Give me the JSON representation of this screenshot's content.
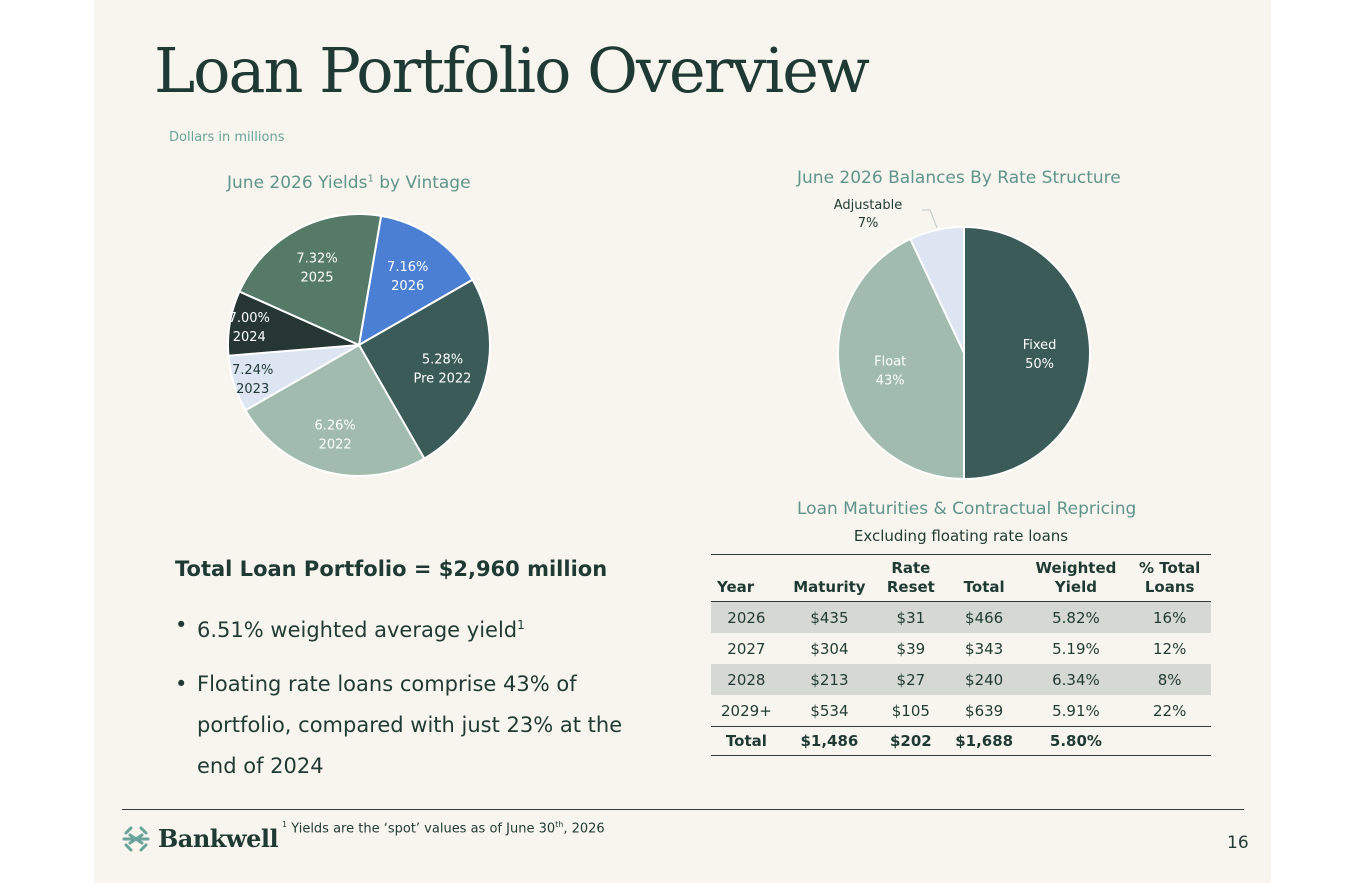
{
  "title": "Loan Portfolio  Overview",
  "subnote": "Dollars in millions",
  "chart1": {
    "title_pre": "June 2026 Yields",
    "title_sup": "1",
    "title_post": " by Vintage"
  },
  "chart2": {
    "title": "June 2026 Balances By Rate Structure"
  },
  "chart_data": [
    {
      "type": "pie",
      "title": "June 2026 Yields1 by Vintage",
      "slices": [
        {
          "label": "2026",
          "yield": "7.16%",
          "share": 0.14,
          "color": "#4a7fd4"
        },
        {
          "label": "Pre 2022",
          "yield": "5.28%",
          "share": 0.25,
          "color": "#3b5b58"
        },
        {
          "label": "2022",
          "yield": "6.26%",
          "share": 0.25,
          "color": "#a1bcaf"
        },
        {
          "label": "2023",
          "yield": "7.24%",
          "share": 0.07,
          "color": "#dde5f2"
        },
        {
          "label": "2024",
          "yield": "7.00%",
          "share": 0.08,
          "color": "#253633"
        },
        {
          "label": "2025",
          "yield": "7.32%",
          "share": 0.21,
          "color": "#557a67"
        }
      ]
    },
    {
      "type": "pie",
      "title": "June 2026 Balances By Rate Structure",
      "slices": [
        {
          "label": "Fixed",
          "value": 50,
          "display": "50%",
          "color": "#3b5b58"
        },
        {
          "label": "Float",
          "value": 43,
          "display": "43%",
          "color": "#a1bcaf"
        },
        {
          "label": "Adjustable",
          "value": 7,
          "display": "7%",
          "color": "#dde5f2"
        }
      ]
    },
    {
      "type": "table",
      "title": "Loan Maturities & Contractual Repricing",
      "subtitle": "Excluding floating rate loans",
      "columns": [
        "Year",
        "Maturity",
        "Rate Reset",
        "Total",
        "Weighted Yield",
        "% Total Loans"
      ],
      "rows": [
        [
          "2026",
          "$435",
          "$31",
          "$466",
          "5.82%",
          "16%"
        ],
        [
          "2027",
          "$304",
          "$39",
          "$343",
          "5.19%",
          "12%"
        ],
        [
          "2028",
          "$213",
          "$27",
          "$240",
          "6.34%",
          "8%"
        ],
        [
          "2029+",
          "$534",
          "$105",
          "$639",
          "5.91%",
          "22%"
        ]
      ],
      "total_row": [
        "Total",
        "$1,486",
        "$202",
        "$1,688",
        "5.80%",
        ""
      ]
    }
  ],
  "table": {
    "title": "Loan Maturities & Contractual Repricing",
    "subtitle": "Excluding floating rate loans",
    "headers": {
      "year": "Year",
      "maturity": "Maturity",
      "rate_reset_1": "Rate",
      "rate_reset_2": "Reset",
      "total": "Total",
      "weighted_1": "Weighted",
      "weighted_2": "Yield",
      "pct_1": "% Total",
      "pct_2": "Loans"
    },
    "rows": [
      [
        "2026",
        "$435",
        "$31",
        "$466",
        "5.82%",
        "16%"
      ],
      [
        "2027",
        "$304",
        "$39",
        "$343",
        "5.19%",
        "12%"
      ],
      [
        "2028",
        "$213",
        "$27",
        "$240",
        "6.34%",
        "8%"
      ],
      [
        "2029+",
        "$534",
        "$105",
        "$639",
        "5.91%",
        "22%"
      ]
    ],
    "total": [
      "Total",
      "$1,486",
      "$202",
      "$1,688",
      "5.80%",
      ""
    ]
  },
  "summary": "Total Loan Portfolio = $2,960 million",
  "bullets": {
    "b1_text": "6.51% weighted average yield",
    "b1_sup": "1",
    "b2_text": "Floating rate loans comprise 43% of portfolio, compared with just 23% at the end of 2024"
  },
  "footer": {
    "logo": "Bankwell",
    "footnote_sup": "1",
    "footnote_pre": " Yields are the ‘spot’ values as of June 30",
    "footnote_th": "th",
    "footnote_post": ", 2026",
    "page": "16"
  }
}
